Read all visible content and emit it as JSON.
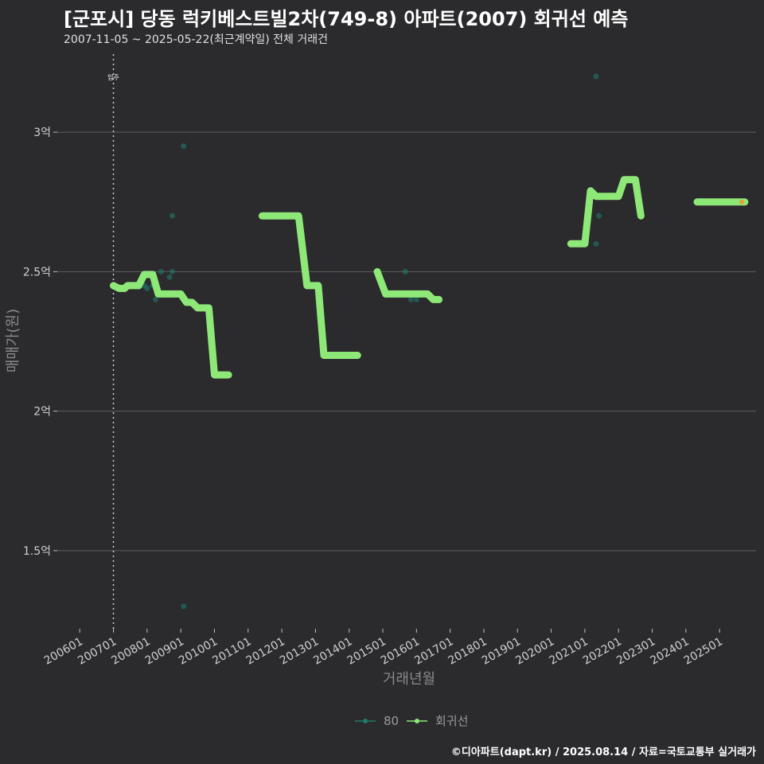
{
  "title": "[군포시] 당동 럭키베스트빌2차(749-8) 아파트(2007) 회귀선 예측",
  "subtitle": "2007-11-05 ~ 2025-05-22(최근계약일) 전체 거래건",
  "caption": "©디아파트(dapt.kr) / 2025.08.14 / 자료=국토교통부 실거래가",
  "colors": {
    "background": "#2b2a2d",
    "grid": "#5e5e5e",
    "regression_line": "#8ee878",
    "points_80": "#1f7a6a",
    "marker_line": "#d0d0d0",
    "latest_point": "#ff8c2a"
  },
  "chart_data": {
    "type": "line",
    "title": "[군포시] 당동 럭키베스트빌2차(749-8) 아파트(2007) 회귀선 예측",
    "xlabel": "거래년월",
    "ylabel": "매매가(원)",
    "x_ticks": [
      "200601",
      "200701",
      "200801",
      "200901",
      "201001",
      "201101",
      "201201",
      "201301",
      "201401",
      "201501",
      "201601",
      "201701",
      "201801",
      "201901",
      "202001",
      "202101",
      "202201",
      "202301",
      "202401",
      "202501"
    ],
    "y_ticks": [
      {
        "value": 1.5,
        "label": "1.5억"
      },
      {
        "value": 2.0,
        "label": "2억"
      },
      {
        "value": 2.5,
        "label": "2.5억"
      },
      {
        "value": 3.0,
        "label": "3억"
      }
    ],
    "y_unit": "억",
    "ylim": [
      1.22,
      3.28
    ],
    "xlim": [
      "2005-05",
      "2026-02"
    ],
    "grid": true,
    "legend_position": "bottom",
    "vline": {
      "x": "2007-01",
      "label": "입주"
    },
    "series": [
      {
        "name": "80",
        "kind": "scatter",
        "points": [
          [
            "2007-12",
            2.45
          ],
          [
            "2008-01",
            2.44
          ],
          [
            "2008-03",
            2.45
          ],
          [
            "2008-04",
            2.4
          ],
          [
            "2008-06",
            2.5
          ],
          [
            "2008-09",
            2.48
          ],
          [
            "2008-10",
            2.5
          ],
          [
            "2008-10",
            2.7
          ],
          [
            "2009-02",
            2.95
          ],
          [
            "2009-02",
            1.3
          ],
          [
            "2015-09",
            2.5
          ],
          [
            "2015-11",
            2.4
          ],
          [
            "2016-01",
            2.4
          ],
          [
            "2021-01",
            2.6
          ],
          [
            "2021-05",
            2.6
          ],
          [
            "2021-05",
            3.2
          ],
          [
            "2021-06",
            2.7
          ],
          [
            "2024-11",
            2.75
          ],
          [
            "2025-05",
            2.75
          ]
        ]
      },
      {
        "name": "회귀선",
        "kind": "line",
        "segments": [
          [
            [
              "2007-01",
              2.45
            ],
            [
              "2007-03",
              2.44
            ],
            [
              "2007-05",
              2.44
            ],
            [
              "2007-06",
              2.45
            ],
            [
              "2007-10",
              2.45
            ],
            [
              "2007-12",
              2.49
            ],
            [
              "2008-03",
              2.49
            ],
            [
              "2008-05",
              2.42
            ],
            [
              "2009-01",
              2.42
            ],
            [
              "2009-03",
              2.39
            ],
            [
              "2009-05",
              2.39
            ],
            [
              "2009-07",
              2.37
            ],
            [
              "2009-11",
              2.37
            ],
            [
              "2010-01",
              2.13
            ],
            [
              "2010-06",
              2.13
            ]
          ],
          [
            [
              "2011-06",
              2.7
            ],
            [
              "2012-07",
              2.7
            ],
            [
              "2012-10",
              2.45
            ],
            [
              "2013-02",
              2.45
            ],
            [
              "2013-04",
              2.2
            ],
            [
              "2014-04",
              2.2
            ]
          ],
          [
            [
              "2014-11",
              2.5
            ],
            [
              "2015-02",
              2.42
            ],
            [
              "2016-05",
              2.42
            ],
            [
              "2016-07",
              2.4
            ],
            [
              "2016-09",
              2.4
            ]
          ],
          [
            [
              "2020-08",
              2.6
            ],
            [
              "2021-01",
              2.6
            ],
            [
              "2021-03",
              2.79
            ],
            [
              "2021-05",
              2.77
            ],
            [
              "2022-01",
              2.77
            ],
            [
              "2022-03",
              2.83
            ],
            [
              "2022-07",
              2.83
            ],
            [
              "2022-09",
              2.7
            ]
          ],
          [
            [
              "2024-05",
              2.75
            ],
            [
              "2025-10",
              2.75
            ]
          ]
        ]
      }
    ]
  }
}
